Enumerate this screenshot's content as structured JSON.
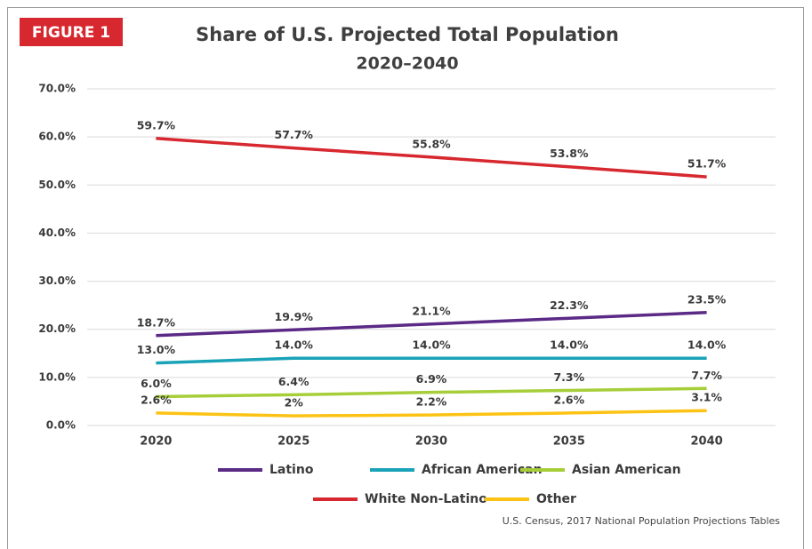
{
  "chart_data": {
    "type": "line",
    "badge": "FIGURE 1",
    "title": "Share of U.S. Projected Total Population",
    "subtitle": "2020–2040",
    "source": "U.S. Census, 2017 National Population Projections Tables",
    "categories": [
      "2020",
      "2025",
      "2030",
      "2035",
      "2040"
    ],
    "ylim": [
      0,
      70
    ],
    "yticks": [
      {
        "value": 0,
        "label": "0.0%"
      },
      {
        "value": 10,
        "label": "10.0%"
      },
      {
        "value": 20,
        "label": "20.0%"
      },
      {
        "value": 30,
        "label": "30.0%"
      },
      {
        "value": 40,
        "label": "40.0%"
      },
      {
        "value": 50,
        "label": "50.0%"
      },
      {
        "value": 60,
        "label": "60.0%"
      },
      {
        "value": 70,
        "label": "70.0%"
      }
    ],
    "grid": true,
    "series": [
      {
        "name": "Latino",
        "color": "#5b2a86",
        "values": [
          18.7,
          19.9,
          21.1,
          22.3,
          23.5
        ],
        "value_labels": [
          "18.7%",
          "19.9%",
          "21.1%",
          "22.3%",
          "23.5%"
        ]
      },
      {
        "name": "African American",
        "color": "#1aa3b8",
        "values": [
          13.0,
          14.0,
          14.0,
          14.0,
          14.0
        ],
        "value_labels": [
          "13.0%",
          "14.0%",
          "14.0%",
          "14.0%",
          "14.0%"
        ]
      },
      {
        "name": "Asian American",
        "color": "#a6ce39",
        "values": [
          6.0,
          6.4,
          6.9,
          7.3,
          7.7
        ],
        "value_labels": [
          "6.0%",
          "6.4%",
          "6.9%",
          "7.3%",
          "7.7%"
        ]
      },
      {
        "name": "White Non-Latino",
        "color": "#d7282f",
        "values": [
          59.7,
          57.7,
          55.8,
          53.8,
          51.7
        ],
        "value_labels": [
          "59.7%",
          "57.7%",
          "55.8%",
          "53.8%",
          "51.7%"
        ]
      },
      {
        "name": "Other",
        "color": "#fcc314",
        "values": [
          2.6,
          2.0,
          2.2,
          2.6,
          3.1
        ],
        "value_labels": [
          "2.6%",
          "2%",
          "2.2%",
          "2.6%",
          "3.1%"
        ]
      }
    ]
  }
}
